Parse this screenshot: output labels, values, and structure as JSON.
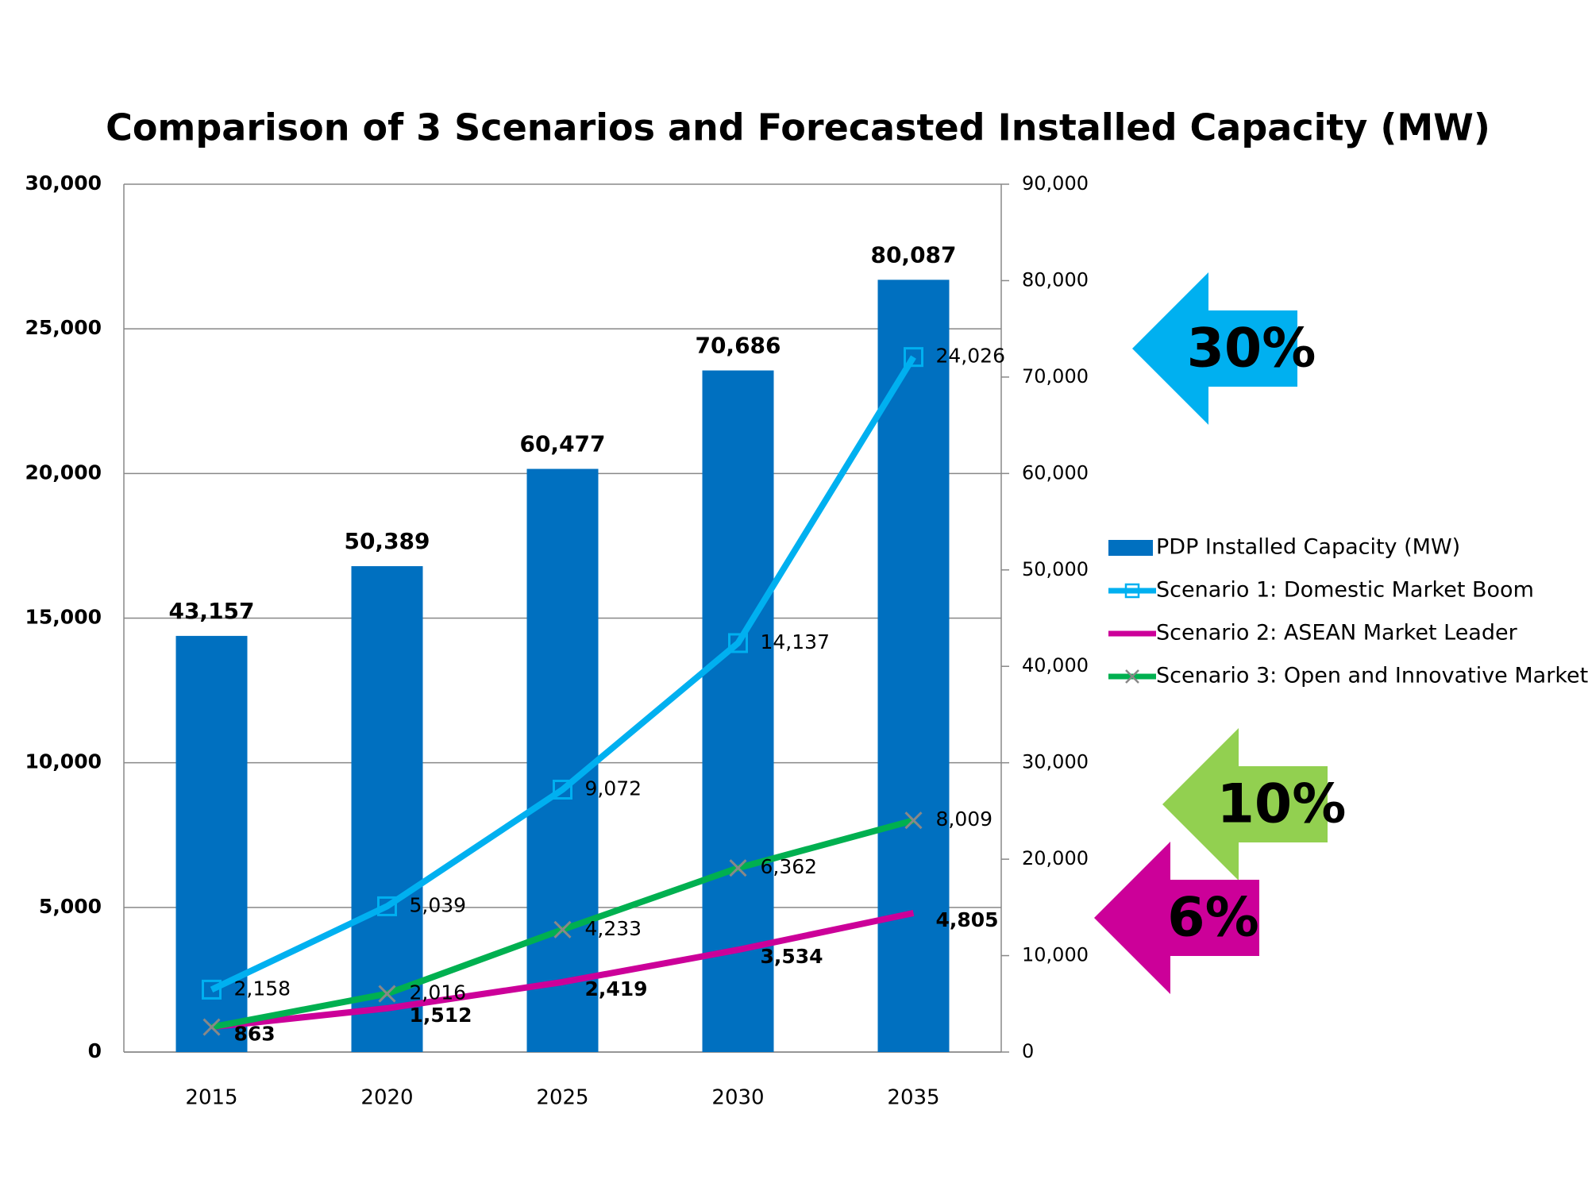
{
  "chart_data": {
    "type": "bar",
    "title": "Comparison of 3 Scenarios and Forecasted Installed Capacity (MW)",
    "categories": [
      "2015",
      "2020",
      "2025",
      "2030",
      "2035"
    ],
    "series": [
      {
        "name": "PDP Installed Capacity (MW)",
        "type": "bar",
        "axis": "y2",
        "color": "#0070c0",
        "values": [
          43157,
          50389,
          60477,
          70686,
          80087
        ],
        "value_labels": [
          "43,157",
          "50,389",
          "60,477",
          "70,686",
          "80,087"
        ]
      },
      {
        "name": "Scenario 1: Domestic Market Boom",
        "type": "line",
        "color": "#00b0f0",
        "marker": "square",
        "values": [
          2158,
          5039,
          9072,
          14137,
          24026
        ],
        "value_labels": [
          "2,158",
          "5,039",
          "9,072",
          "14,137",
          "24,026"
        ]
      },
      {
        "name": "Scenario 2: ASEAN Market Leader",
        "type": "line",
        "color": "#cc0099",
        "marker": "none",
        "values": [
          863,
          1512,
          2419,
          3534,
          4805
        ],
        "value_labels": [
          "863",
          "1,512",
          "2,419",
          "3,534",
          "4,805"
        ]
      },
      {
        "name": "Scenario 3: Open and Innovative Market",
        "type": "line",
        "color": "#00b050",
        "marker": "x",
        "values": [
          863,
          2016,
          4233,
          6362,
          8009
        ],
        "value_labels": [
          null,
          "2,016",
          "4,233",
          "6,362",
          "8,009"
        ]
      }
    ],
    "ylim": [
      0,
      30000
    ],
    "yticks": [
      0,
      {
        "value": 5000,
        "label": "5,000"
      },
      {
        "value": 10000,
        "label": "10,000"
      },
      {
        "value": 15000,
        "label": "15,000"
      },
      {
        "value": 20000,
        "label": "20,000"
      },
      {
        "value": 25000,
        "label": "25,000"
      },
      {
        "value": 30000,
        "label": "30,000"
      }
    ],
    "y2lim": [
      0,
      90000
    ],
    "y2ticks": [
      0,
      {
        "value": 10000,
        "label": "10,000"
      },
      {
        "value": 20000,
        "label": "20,000"
      },
      {
        "value": 30000,
        "label": "30,000"
      },
      {
        "value": 40000,
        "label": "40,000"
      },
      {
        "value": 50000,
        "label": "50,000"
      },
      {
        "value": 60000,
        "label": "60,000"
      },
      {
        "value": 70000,
        "label": "70,000"
      },
      {
        "value": 80000,
        "label": "80,000"
      },
      {
        "value": 90000,
        "label": "90,000"
      }
    ],
    "grid": true,
    "annotations": [
      {
        "text": "30%",
        "color": "#00b0f0"
      },
      {
        "text": "10%",
        "color": "#92d050"
      },
      {
        "text": "6%",
        "color": "#cc0099"
      }
    ]
  }
}
